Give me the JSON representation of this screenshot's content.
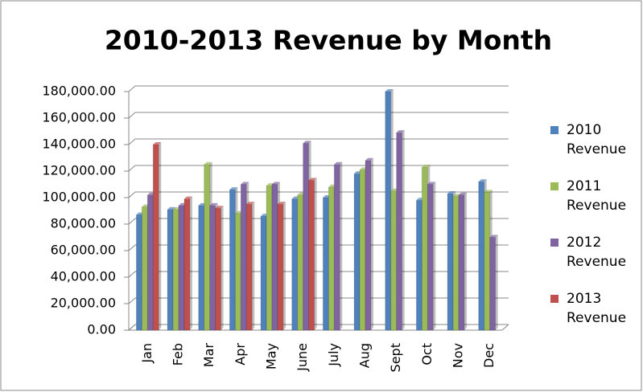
{
  "chart_data": {
    "type": "bar",
    "title": "2010-2013 Revenue by Month",
    "categories": [
      "Jan",
      "Feb",
      "Mar",
      "Apr",
      "May",
      "June",
      "July",
      "Aug",
      "Sept",
      "Oct",
      "Nov",
      "Dec"
    ],
    "series": [
      {
        "name": "2010 Revenue",
        "color": "#4f81bd",
        "values": [
          87000,
          91000,
          94000,
          106000,
          86000,
          99000,
          100000,
          118000,
          180000,
          98000,
          103000,
          112000
        ]
      },
      {
        "name": "2011 Revenue",
        "color": "#9bbb59",
        "values": [
          93000,
          91000,
          125000,
          88000,
          109000,
          102000,
          108000,
          121000,
          105000,
          123000,
          101000,
          104000
        ]
      },
      {
        "name": "2012 Revenue",
        "color": "#8064a2",
        "values": [
          102000,
          94000,
          94000,
          110000,
          110000,
          141000,
          125000,
          128000,
          149000,
          110000,
          102000,
          70000
        ]
      },
      {
        "name": "2013 Revenue",
        "color": "#c0504d",
        "values": [
          140000,
          99000,
          92000,
          95000,
          95000,
          113000,
          null,
          null,
          null,
          null,
          null,
          null
        ]
      }
    ],
    "ylim": [
      0,
      180000
    ],
    "yticks": [
      {
        "value": 0,
        "label": "0.00"
      },
      {
        "value": 20000,
        "label": "20,000.00"
      },
      {
        "value": 40000,
        "label": "40,000.00"
      },
      {
        "value": 60000,
        "label": "60,000.00"
      },
      {
        "value": 80000,
        "label": "80,000.00"
      },
      {
        "value": 100000,
        "label": "100,000.00"
      },
      {
        "value": 120000,
        "label": "120,000.00"
      },
      {
        "value": 140000,
        "label": "140,000.00"
      },
      {
        "value": 160000,
        "label": "160,000.00"
      },
      {
        "value": 180000,
        "label": "180,000.00"
      }
    ],
    "grid": true,
    "legend": "right"
  }
}
